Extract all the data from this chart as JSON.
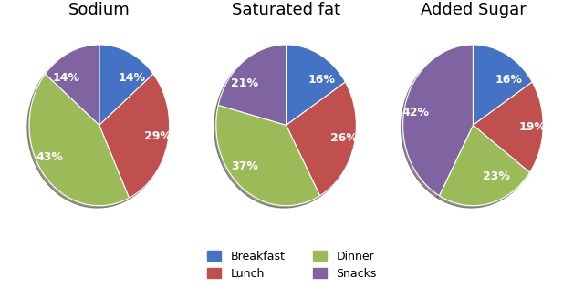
{
  "charts": [
    {
      "title": "Sodium",
      "values": [
        14,
        29,
        43,
        14
      ],
      "labels": [
        "14%",
        "29%",
        "43%",
        "14%"
      ],
      "startangle": 90
    },
    {
      "title": "Saturated fat",
      "values": [
        16,
        26,
        37,
        21
      ],
      "labels": [
        "16%",
        "26%",
        "37%",
        "21%"
      ],
      "startangle": 90
    },
    {
      "title": "Added Sugar",
      "values": [
        16,
        19,
        23,
        42
      ],
      "labels": [
        "16%",
        "19%",
        "23%",
        "42%"
      ],
      "startangle": 90
    }
  ],
  "colors": [
    "#4472C4",
    "#C0504D",
    "#9BBB59",
    "#8064A2"
  ],
  "legend_labels": [
    "Breakfast",
    "Lunch",
    "Dinner",
    "Snacks"
  ],
  "legend_colors_order": [
    0,
    1,
    2,
    3
  ],
  "title_fontsize": 13,
  "label_fontsize": 9,
  "background_color": "#FFFFFF",
  "figsize": [
    6.4,
    3.27
  ],
  "dpi": 100
}
